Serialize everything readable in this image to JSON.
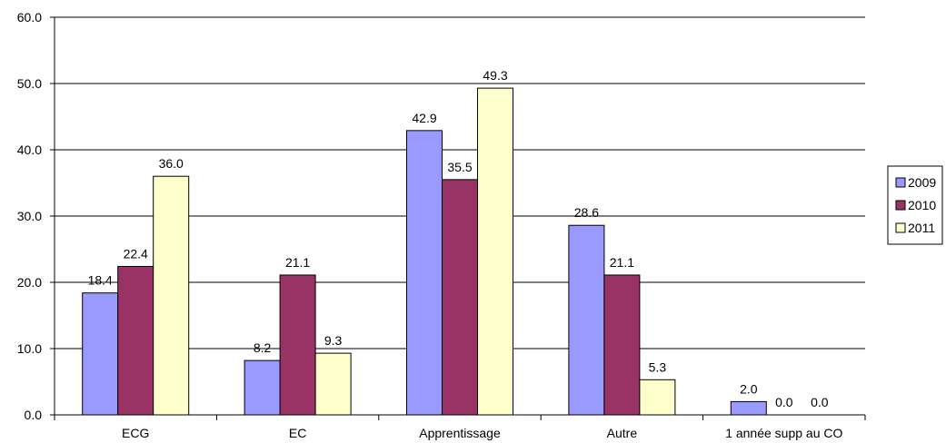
{
  "chart_data": {
    "type": "bar",
    "title": "",
    "xlabel": "",
    "ylabel": "",
    "ylim": [
      0,
      60
    ],
    "yticks": [
      "0.0",
      "10.0",
      "20.0",
      "30.0",
      "40.0",
      "50.0",
      "60.0"
    ],
    "grid": true,
    "legend_position": "right",
    "categories": [
      "ECG",
      "EC",
      "Apprentissage",
      "Autre",
      "1 année supp au CO"
    ],
    "series": [
      {
        "name": "2009",
        "color": "#9999ff",
        "values": [
          18.4,
          8.2,
          42.9,
          28.6,
          2.0
        ],
        "labels": [
          "18.4",
          "8.2",
          "42.9",
          "28.6",
          "2.0"
        ]
      },
      {
        "name": "2010",
        "color": "#993366",
        "values": [
          22.4,
          21.1,
          35.5,
          21.1,
          0.0
        ],
        "labels": [
          "22.4",
          "21.1",
          "35.5",
          "21.1",
          "0.0"
        ]
      },
      {
        "name": "2011",
        "color": "#ffffcc",
        "values": [
          36.0,
          9.3,
          49.3,
          5.3,
          0.0
        ],
        "labels": [
          "36.0",
          "9.3",
          "49.3",
          "5.3",
          "0.0"
        ]
      }
    ]
  }
}
